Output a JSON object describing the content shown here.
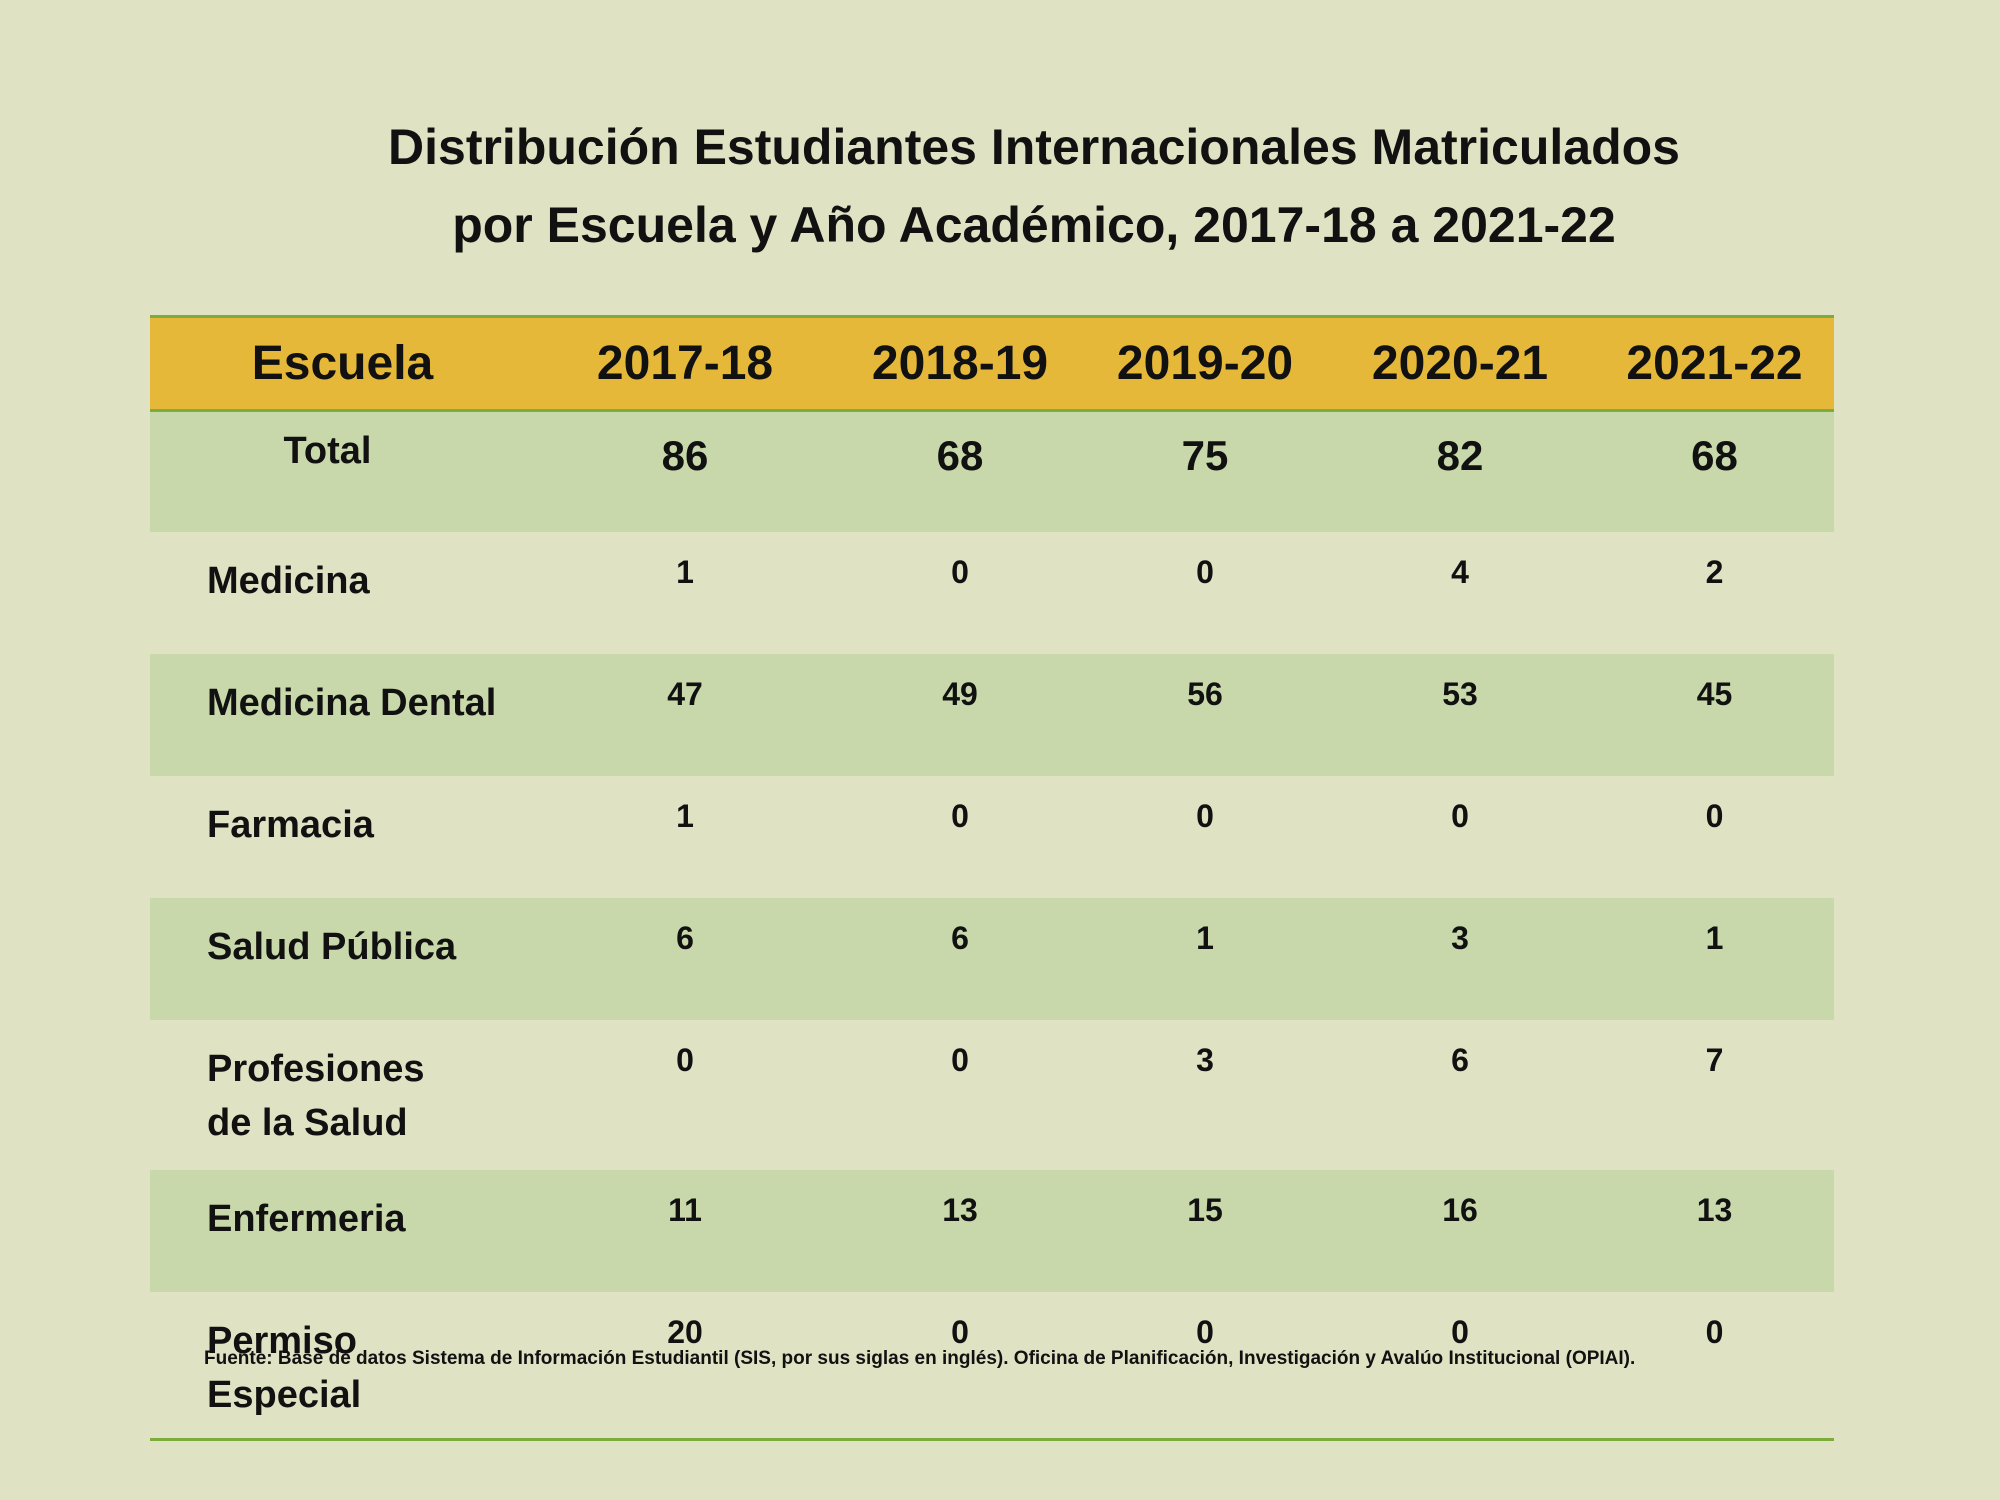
{
  "chart_data": {
    "type": "table",
    "title_line1": "Distribución Estudiantes Internacionales Matriculados",
    "title_line2": "por Escuela y Año Académico, 2017-18 a 2021-22",
    "columns": [
      "Escuela",
      "2017-18",
      "2018-19",
      "2019-20",
      "2020-21",
      "2021-22"
    ],
    "total": {
      "label": "Total",
      "values": [
        "86",
        "68",
        "75",
        "82",
        "68"
      ]
    },
    "rows": [
      {
        "school": "Medicina",
        "values": [
          "1",
          "0",
          "0",
          "4",
          "2"
        ]
      },
      {
        "school": "Medicina Dental",
        "values": [
          "47",
          "49",
          "56",
          "53",
          "45"
        ]
      },
      {
        "school": "Farmacia",
        "values": [
          "1",
          "0",
          "0",
          "0",
          "0"
        ]
      },
      {
        "school": "Salud Pública",
        "values": [
          "6",
          "6",
          "1",
          "3",
          "1"
        ]
      },
      {
        "school": "Profesiones de la Salud",
        "values": [
          "0",
          "0",
          "3",
          "6",
          "7"
        ]
      },
      {
        "school": "Enfermeria",
        "values": [
          "11",
          "13",
          "15",
          "16",
          "13"
        ]
      },
      {
        "school": "Permiso Especial",
        "values": [
          "20",
          "0",
          "0",
          "0",
          "0"
        ]
      }
    ],
    "source": "Fuente: Base de datos  Sistema de Información Estudiantil (SIS, por sus siglas en inglés). Oficina de Planificación, Investigación y Avalúo Institucional (OPIAI)."
  },
  "colors": {
    "background": "#dfe3c3",
    "header": "#e5b83a",
    "stripe": "#c8d8aa",
    "rule": "#7cac3c"
  }
}
